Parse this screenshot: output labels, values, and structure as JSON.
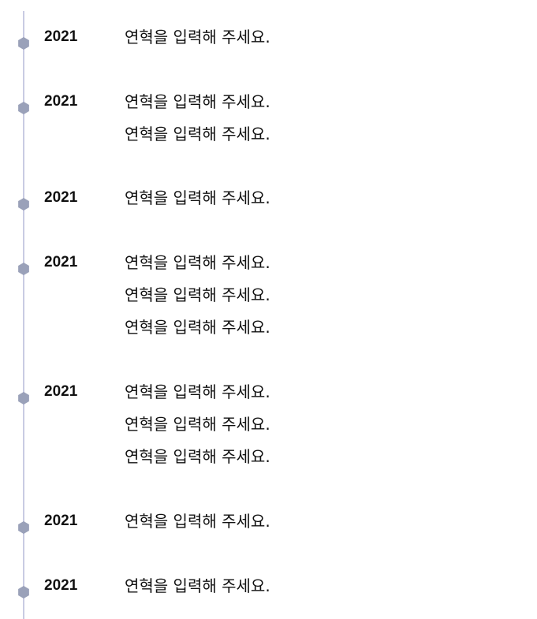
{
  "timeline": {
    "accent_line": "#c9cbe3",
    "marker_color": "#9aa1b9",
    "marker_icon": "hexagon-icon",
    "entries": [
      {
        "year": "2021",
        "items": [
          "연혁을 입력해 주세요."
        ]
      },
      {
        "year": "2021",
        "items": [
          "연혁을 입력해 주세요.",
          "연혁을 입력해 주세요."
        ]
      },
      {
        "year": "2021",
        "items": [
          "연혁을 입력해 주세요."
        ]
      },
      {
        "year": "2021",
        "items": [
          "연혁을 입력해 주세요.",
          "연혁을 입력해 주세요.",
          "연혁을 입력해 주세요."
        ]
      },
      {
        "year": "2021",
        "items": [
          "연혁을 입력해 주세요.",
          "연혁을 입력해 주세요.",
          "연혁을 입력해 주세요."
        ]
      },
      {
        "year": "2021",
        "items": [
          "연혁을 입력해 주세요."
        ]
      },
      {
        "year": "2021",
        "items": [
          "연혁을 입력해 주세요."
        ]
      }
    ]
  }
}
